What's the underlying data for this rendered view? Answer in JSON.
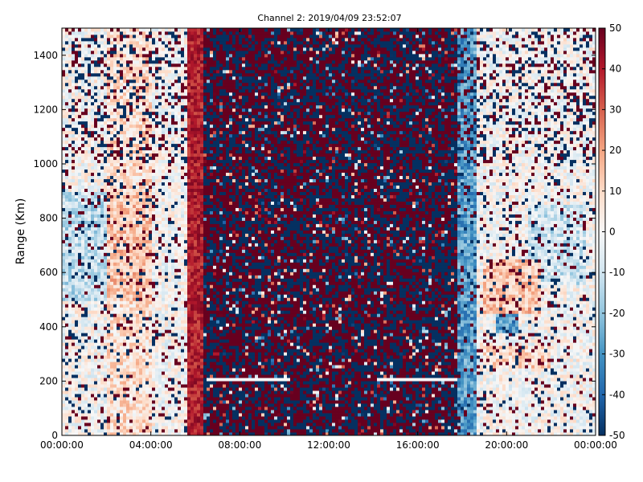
{
  "chart_data": {
    "type": "heatmap",
    "title": "Channel 2: 2019/04/09 23:52:07",
    "xlabel": "",
    "ylabel": "Range (Km)",
    "x_ticks": [
      "00:00:00",
      "04:00:00",
      "08:00:00",
      "12:00:00",
      "16:00:00",
      "20:00:00",
      "00:00:00"
    ],
    "x_range_hours": [
      0,
      24
    ],
    "y_ticks": [
      0,
      200,
      400,
      600,
      800,
      1000,
      1200,
      1400
    ],
    "ylim": [
      0,
      1500
    ],
    "colorbar": {
      "colormap": "RdBu_r",
      "range": [
        -50,
        50
      ],
      "ticks": [
        50,
        40,
        30,
        20,
        10,
        0,
        -10,
        -20,
        -30,
        -40,
        -50
      ],
      "low_color": "#053061",
      "mid_color": "#f7f7f7",
      "high_color": "#67001f"
    },
    "grid": false,
    "features": {
      "strong_positive_band_hours": [
        5.7,
        6.4
      ],
      "noise_region_hours": [
        6.4,
        17.8
      ],
      "negative_band_hours": [
        17.6,
        18.6
      ],
      "weak_positive_band_hours": [
        2.0,
        4.0
      ],
      "white_gap_range_km": [
        200,
        215
      ]
    }
  }
}
